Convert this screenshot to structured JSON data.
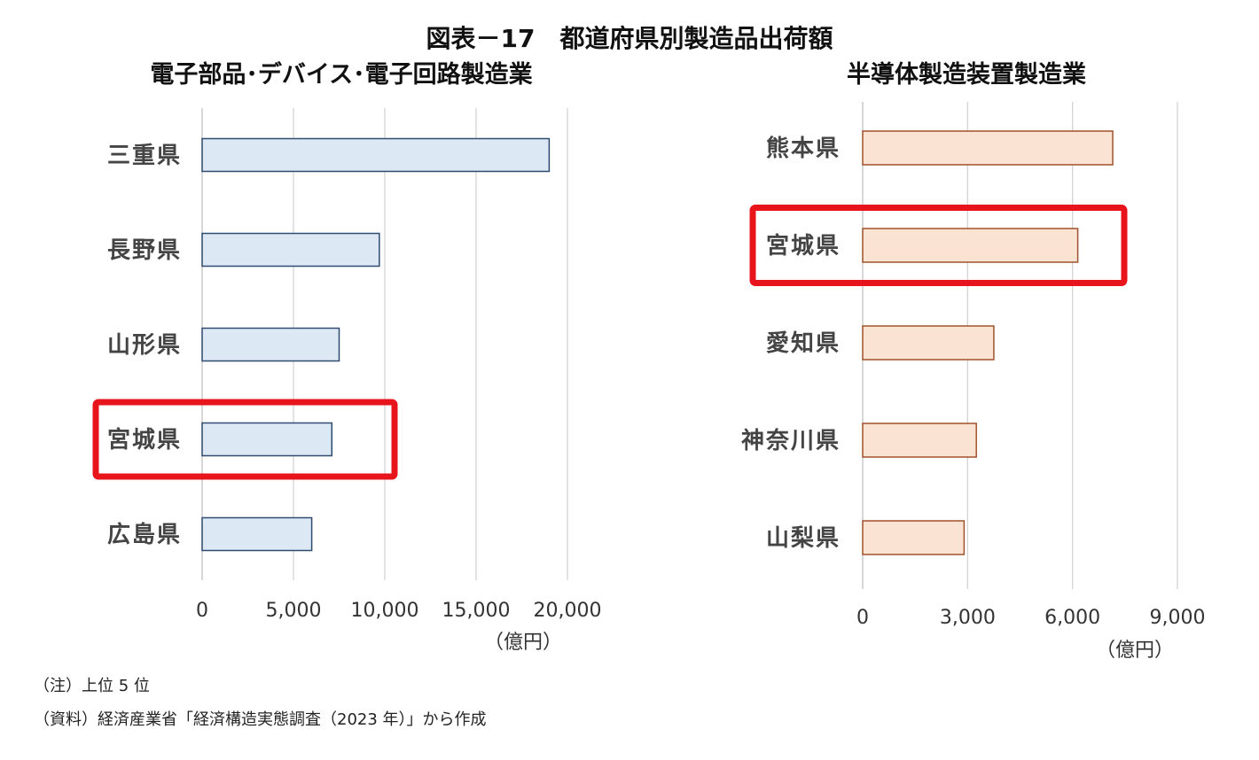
{
  "title": "図表－17　都道府県別製造品出荷額",
  "chart_data": [
    {
      "type": "bar",
      "orientation": "horizontal",
      "title": "電子部品･デバイス･電子回路製造業",
      "categories": [
        "三重県",
        "長野県",
        "山形県",
        "宮城県",
        "広島県"
      ],
      "values": [
        19000,
        9700,
        7500,
        7100,
        6000
      ],
      "xlim": [
        0,
        20000
      ],
      "xticks": [
        "0",
        "5,000",
        "10,000",
        "15,000",
        "20,000"
      ],
      "unit": "（億円）",
      "grid": true,
      "bar_fill": "#dde8f5",
      "bar_stroke": "#2f4b6e",
      "highlight": "宮城県",
      "highlight_color": "#e8141c"
    },
    {
      "type": "bar",
      "orientation": "horizontal",
      "title": "半導体製造装置製造業",
      "categories": [
        "熊本県",
        "宮城県",
        "愛知県",
        "神奈川県",
        "山梨県"
      ],
      "values": [
        7150,
        6150,
        3750,
        3250,
        2900
      ],
      "xlim": [
        0,
        9000
      ],
      "xticks": [
        "0",
        "3,000",
        "6,000",
        "9,000"
      ],
      "unit": "（億円）",
      "grid": true,
      "bar_fill": "#fbe3d4",
      "bar_stroke": "#a0522d",
      "highlight": "宮城県",
      "highlight_color": "#e8141c"
    }
  ],
  "notes": {
    "note": "（注）上位 5 位",
    "source": "（資料）経済産業省「経済構造実態調査（2023 年）」から作成"
  }
}
